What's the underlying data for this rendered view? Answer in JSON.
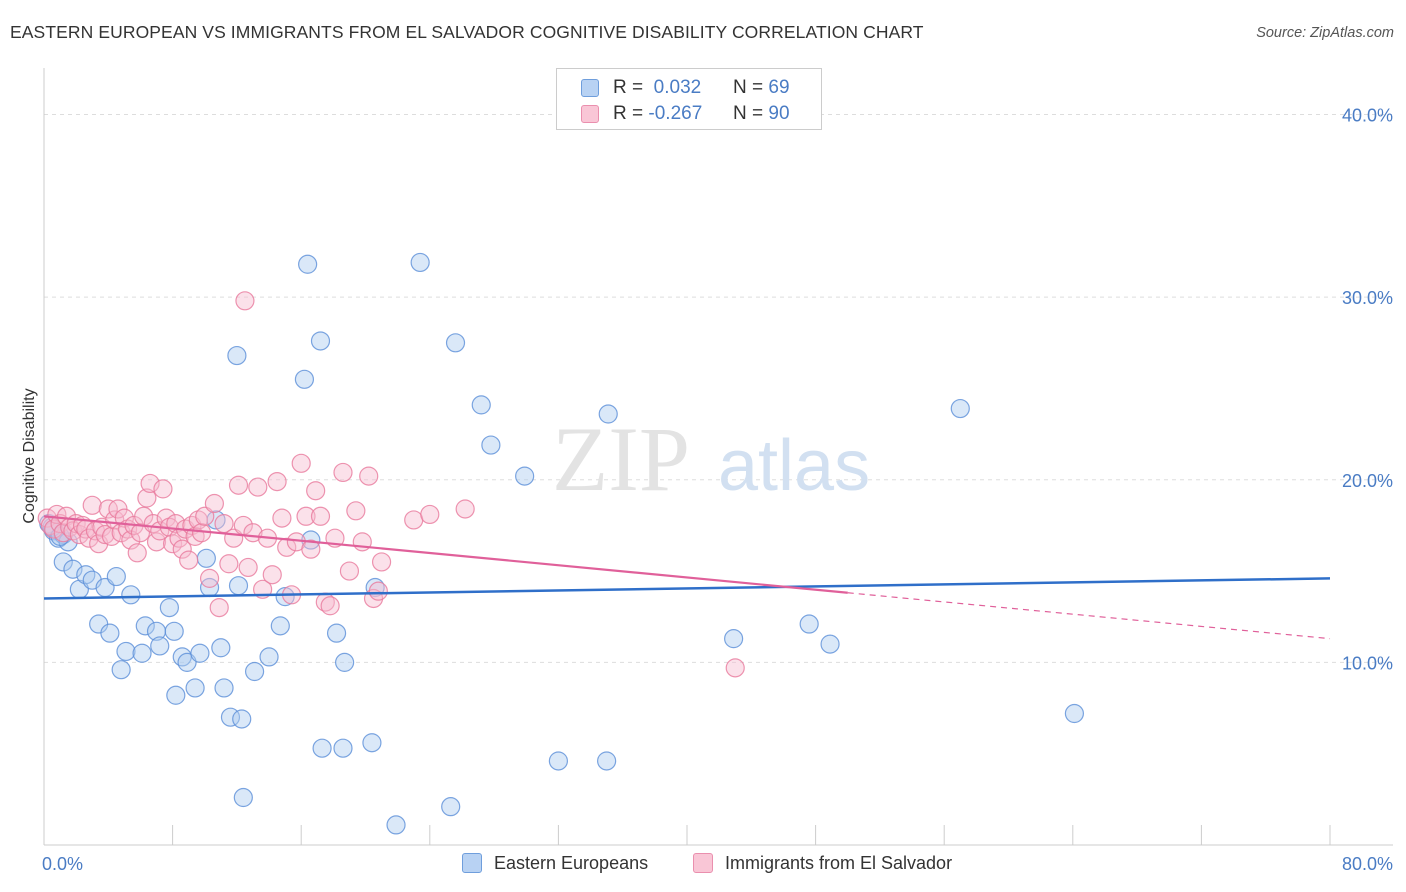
{
  "title": "EASTERN EUROPEAN VS IMMIGRANTS FROM EL SALVADOR COGNITIVE DISABILITY CORRELATION CHART",
  "source": "Source: ZipAtlas.com",
  "watermark": {
    "zip": "ZIP",
    "atlas": "atlas"
  },
  "legend_stats": {
    "rows": [
      {
        "r_label": "R =",
        "r_value": "0.032",
        "n_label": "N =",
        "n_value": "69"
      },
      {
        "r_label": "R =",
        "r_value": "-0.267",
        "n_label": "N =",
        "n_value": "90"
      }
    ]
  },
  "chart_data": {
    "type": "scatter",
    "title": "EASTERN EUROPEAN VS IMMIGRANTS FROM EL SALVADOR COGNITIVE DISABILITY CORRELATION CHART",
    "xlabel": "",
    "ylabel": "Cognitive Disability",
    "xlim": [
      0,
      80
    ],
    "ylim": [
      0,
      42
    ],
    "x_tick_labels": {
      "min": "0.0%",
      "max": "80.0%"
    },
    "y_ticks": [
      10,
      20,
      30,
      40
    ],
    "y_tick_labels": [
      "10.0%",
      "20.0%",
      "30.0%",
      "40.0%"
    ],
    "grid": true,
    "legend_position": "bottom",
    "series": [
      {
        "name": "Eastern Europeans",
        "color": "#5b8fd8",
        "fill": "#aecbf0",
        "trend": {
          "x0": 0,
          "y0": 13.5,
          "x1": 80,
          "y1": 14.6,
          "dashed_from": null
        },
        "points": [
          [
            0.3,
            17.6
          ],
          [
            0.6,
            17.2
          ],
          [
            0.9,
            16.8
          ],
          [
            1.2,
            17.0
          ],
          [
            1.5,
            16.6
          ],
          [
            1.2,
            15.5
          ],
          [
            1.8,
            15.1
          ],
          [
            2.2,
            14.0
          ],
          [
            2.6,
            14.8
          ],
          [
            3.0,
            14.5
          ],
          [
            3.8,
            14.1
          ],
          [
            4.5,
            14.7
          ],
          [
            3.4,
            12.1
          ],
          [
            4.1,
            11.6
          ],
          [
            4.8,
            9.6
          ],
          [
            5.1,
            10.6
          ],
          [
            5.4,
            13.7
          ],
          [
            6.1,
            10.5
          ],
          [
            6.3,
            12.0
          ],
          [
            7.0,
            11.7
          ],
          [
            7.2,
            10.9
          ],
          [
            7.8,
            13.0
          ],
          [
            8.1,
            11.7
          ],
          [
            8.2,
            8.2
          ],
          [
            8.6,
            10.3
          ],
          [
            8.9,
            10.0
          ],
          [
            9.4,
            8.6
          ],
          [
            9.7,
            10.5
          ],
          [
            10.1,
            15.7
          ],
          [
            10.3,
            14.1
          ],
          [
            10.7,
            17.8
          ],
          [
            11.0,
            10.8
          ],
          [
            11.2,
            8.6
          ],
          [
            11.6,
            7.0
          ],
          [
            12.1,
            14.2
          ],
          [
            12.3,
            6.9
          ],
          [
            12.4,
            2.6
          ],
          [
            12.0,
            26.8
          ],
          [
            13.1,
            9.5
          ],
          [
            14.0,
            10.3
          ],
          [
            14.7,
            12.0
          ],
          [
            15.0,
            13.6
          ],
          [
            16.4,
            31.8
          ],
          [
            16.6,
            16.7
          ],
          [
            17.2,
            27.6
          ],
          [
            16.2,
            25.5
          ],
          [
            17.3,
            5.3
          ],
          [
            18.2,
            11.6
          ],
          [
            18.7,
            10.0
          ],
          [
            18.6,
            5.3
          ],
          [
            20.4,
            5.6
          ],
          [
            20.6,
            14.1
          ],
          [
            21.9,
            1.1
          ],
          [
            23.4,
            31.9
          ],
          [
            25.3,
            2.1
          ],
          [
            25.6,
            27.5
          ],
          [
            27.2,
            24.1
          ],
          [
            27.8,
            21.9
          ],
          [
            29.9,
            20.2
          ],
          [
            32.0,
            4.6
          ],
          [
            35.0,
            4.6
          ],
          [
            35.1,
            23.6
          ],
          [
            42.9,
            11.3
          ],
          [
            47.6,
            12.1
          ],
          [
            48.9,
            11.0
          ],
          [
            57.0,
            23.9
          ],
          [
            64.1,
            7.2
          ],
          [
            0.5,
            17.4
          ],
          [
            1.0,
            16.9
          ]
        ]
      },
      {
        "name": "Immigrants from El Salvador",
        "color": "#e8799c",
        "fill": "#f7bcd0",
        "trend": {
          "x0": 0,
          "y0": 18.0,
          "x1": 80,
          "y1": 11.3,
          "dashed_from": 50
        },
        "points": [
          [
            0.2,
            17.9
          ],
          [
            0.4,
            17.5
          ],
          [
            0.6,
            17.3
          ],
          [
            0.8,
            18.1
          ],
          [
            1.0,
            17.6
          ],
          [
            1.2,
            17.1
          ],
          [
            1.4,
            18.0
          ],
          [
            1.6,
            17.4
          ],
          [
            1.8,
            17.2
          ],
          [
            2.0,
            17.6
          ],
          [
            2.2,
            17.0
          ],
          [
            2.4,
            17.5
          ],
          [
            2.6,
            17.3
          ],
          [
            2.8,
            16.8
          ],
          [
            3.0,
            18.6
          ],
          [
            3.2,
            17.2
          ],
          [
            3.4,
            16.5
          ],
          [
            3.6,
            17.4
          ],
          [
            3.8,
            17.0
          ],
          [
            4.0,
            18.4
          ],
          [
            4.2,
            16.9
          ],
          [
            4.4,
            17.8
          ],
          [
            4.6,
            18.4
          ],
          [
            4.8,
            17.1
          ],
          [
            5.0,
            17.9
          ],
          [
            5.2,
            17.3
          ],
          [
            5.4,
            16.7
          ],
          [
            5.6,
            17.5
          ],
          [
            5.8,
            16.0
          ],
          [
            6.0,
            17.1
          ],
          [
            6.2,
            18.0
          ],
          [
            6.4,
            19.0
          ],
          [
            6.6,
            19.8
          ],
          [
            6.8,
            17.6
          ],
          [
            7.0,
            16.6
          ],
          [
            7.2,
            17.2
          ],
          [
            7.4,
            19.5
          ],
          [
            7.6,
            17.9
          ],
          [
            7.8,
            17.4
          ],
          [
            8.0,
            16.5
          ],
          [
            8.2,
            17.6
          ],
          [
            8.4,
            16.8
          ],
          [
            8.6,
            16.2
          ],
          [
            8.8,
            17.3
          ],
          [
            9.0,
            15.6
          ],
          [
            9.2,
            17.5
          ],
          [
            9.4,
            16.9
          ],
          [
            9.6,
            17.8
          ],
          [
            9.8,
            17.1
          ],
          [
            10.0,
            18.0
          ],
          [
            10.3,
            14.6
          ],
          [
            10.6,
            18.7
          ],
          [
            10.9,
            13.0
          ],
          [
            11.2,
            17.6
          ],
          [
            11.5,
            15.4
          ],
          [
            11.8,
            16.8
          ],
          [
            12.1,
            19.7
          ],
          [
            12.4,
            17.5
          ],
          [
            12.7,
            15.2
          ],
          [
            13.0,
            17.1
          ],
          [
            13.3,
            19.6
          ],
          [
            13.6,
            14.0
          ],
          [
            13.9,
            16.8
          ],
          [
            14.2,
            14.8
          ],
          [
            14.5,
            19.9
          ],
          [
            14.8,
            17.9
          ],
          [
            15.1,
            16.3
          ],
          [
            15.4,
            13.7
          ],
          [
            15.7,
            16.6
          ],
          [
            16.0,
            20.9
          ],
          [
            16.3,
            18.0
          ],
          [
            16.6,
            16.2
          ],
          [
            16.9,
            19.4
          ],
          [
            17.2,
            18.0
          ],
          [
            17.5,
            13.3
          ],
          [
            17.8,
            13.1
          ],
          [
            18.1,
            16.8
          ],
          [
            18.6,
            20.4
          ],
          [
            19.0,
            15.0
          ],
          [
            19.4,
            18.3
          ],
          [
            19.8,
            16.6
          ],
          [
            20.2,
            20.2
          ],
          [
            20.5,
            13.5
          ],
          [
            20.8,
            13.9
          ],
          [
            21.0,
            15.5
          ],
          [
            12.5,
            29.8
          ],
          [
            23.0,
            17.8
          ],
          [
            24.0,
            18.1
          ],
          [
            26.2,
            18.4
          ],
          [
            43.0,
            9.7
          ]
        ]
      }
    ]
  }
}
